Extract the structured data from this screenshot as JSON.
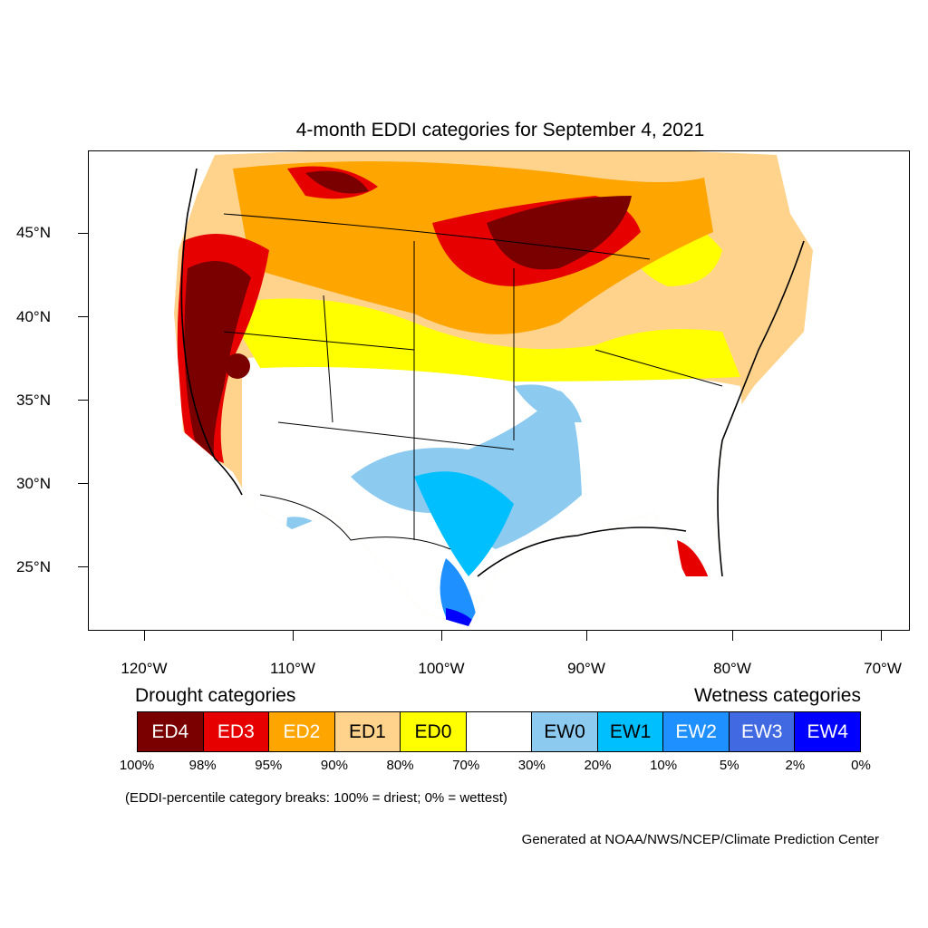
{
  "title": "4-month EDDI categories for September 4, 2021",
  "map": {
    "lat_labels": [
      "45°N",
      "40°N",
      "35°N",
      "30°N",
      "25°N"
    ],
    "lon_labels": [
      "120°W",
      "110°W",
      "100°W",
      "90°W",
      "80°W",
      "70°W"
    ],
    "colors": {
      "ED4": "#7a0000",
      "ED3": "#e60000",
      "ED2": "#ffa500",
      "ED1": "#ffd38c",
      "ED0": "#ffff00",
      "neutral": "#ffffff",
      "EW0": "#8ccaf0",
      "EW1": "#00bfff",
      "EW2": "#1e90ff",
      "EW3": "#4169e1",
      "EW4": "#0000ff"
    }
  },
  "legend": {
    "drought_heading": "Drought categories",
    "wetness_heading": "Wetness categories",
    "categories": [
      {
        "label": "ED4",
        "color": "#7a0000",
        "text_color": "#ffffff"
      },
      {
        "label": "ED3",
        "color": "#e60000",
        "text_color": "#ffffff"
      },
      {
        "label": "ED2",
        "color": "#ffa500",
        "text_color": "#ffffff"
      },
      {
        "label": "ED1",
        "color": "#ffd38c",
        "text_color": "#000000"
      },
      {
        "label": "ED0",
        "color": "#ffff00",
        "text_color": "#000000"
      },
      {
        "label": "",
        "color": "#ffffff",
        "text_color": "#000000"
      },
      {
        "label": "EW0",
        "color": "#8ccaf0",
        "text_color": "#000000"
      },
      {
        "label": "EW1",
        "color": "#00bfff",
        "text_color": "#000000"
      },
      {
        "label": "EW2",
        "color": "#1e90ff",
        "text_color": "#ffffff"
      },
      {
        "label": "EW3",
        "color": "#4169e1",
        "text_color": "#ffffff"
      },
      {
        "label": "EW4",
        "color": "#0000ff",
        "text_color": "#ffffff"
      }
    ],
    "percentiles": [
      "100%",
      "98%",
      "95%",
      "90%",
      "80%",
      "70%",
      "30%",
      "20%",
      "10%",
      "5%",
      "2%",
      "0%"
    ],
    "note": "(EDDI-percentile category breaks: 100% = driest; 0% = wettest)"
  },
  "credit": "Generated at NOAA/NWS/NCEP/Climate Prediction Center"
}
